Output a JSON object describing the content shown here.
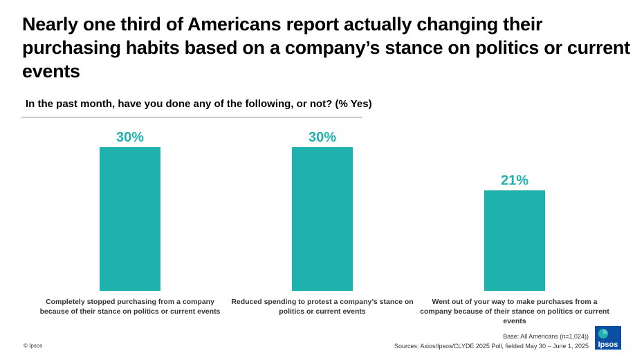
{
  "title": "Nearly one third of Americans report actually changing their purchasing habits based on a company’s stance on politics or current events",
  "question": "In the past month, have you done any of the following, or not? (% Yes)",
  "colors": {
    "bar": "#1fb1ad",
    "label": "#1fb1ad"
  },
  "chart_data": {
    "type": "bar",
    "categories": [
      "Completely stopped purchasing from a company because of their stance on politics or current events",
      "Reduced spending to protest a company’s stance on politics or current events",
      "Went out of your way to make purchases from a company because of their stance on politics or current events"
    ],
    "values": [
      30,
      30,
      21
    ],
    "value_labels": [
      "30%",
      "30%",
      "21%"
    ],
    "title": "",
    "xlabel": "",
    "ylabel": "",
    "ylim": [
      0,
      30
    ],
    "grid": false,
    "legend": "none"
  },
  "footer": {
    "copyright": "© Ipsos",
    "base": "Base: All Americans (n=1,024))",
    "sources": "Sources: Axios/Ipsos/CLYDE  2025 Poll, fielded May 30 – June 1, 2025",
    "logo_text": "Ipsos",
    "logo_icon": "ipsos-logo-icon"
  }
}
